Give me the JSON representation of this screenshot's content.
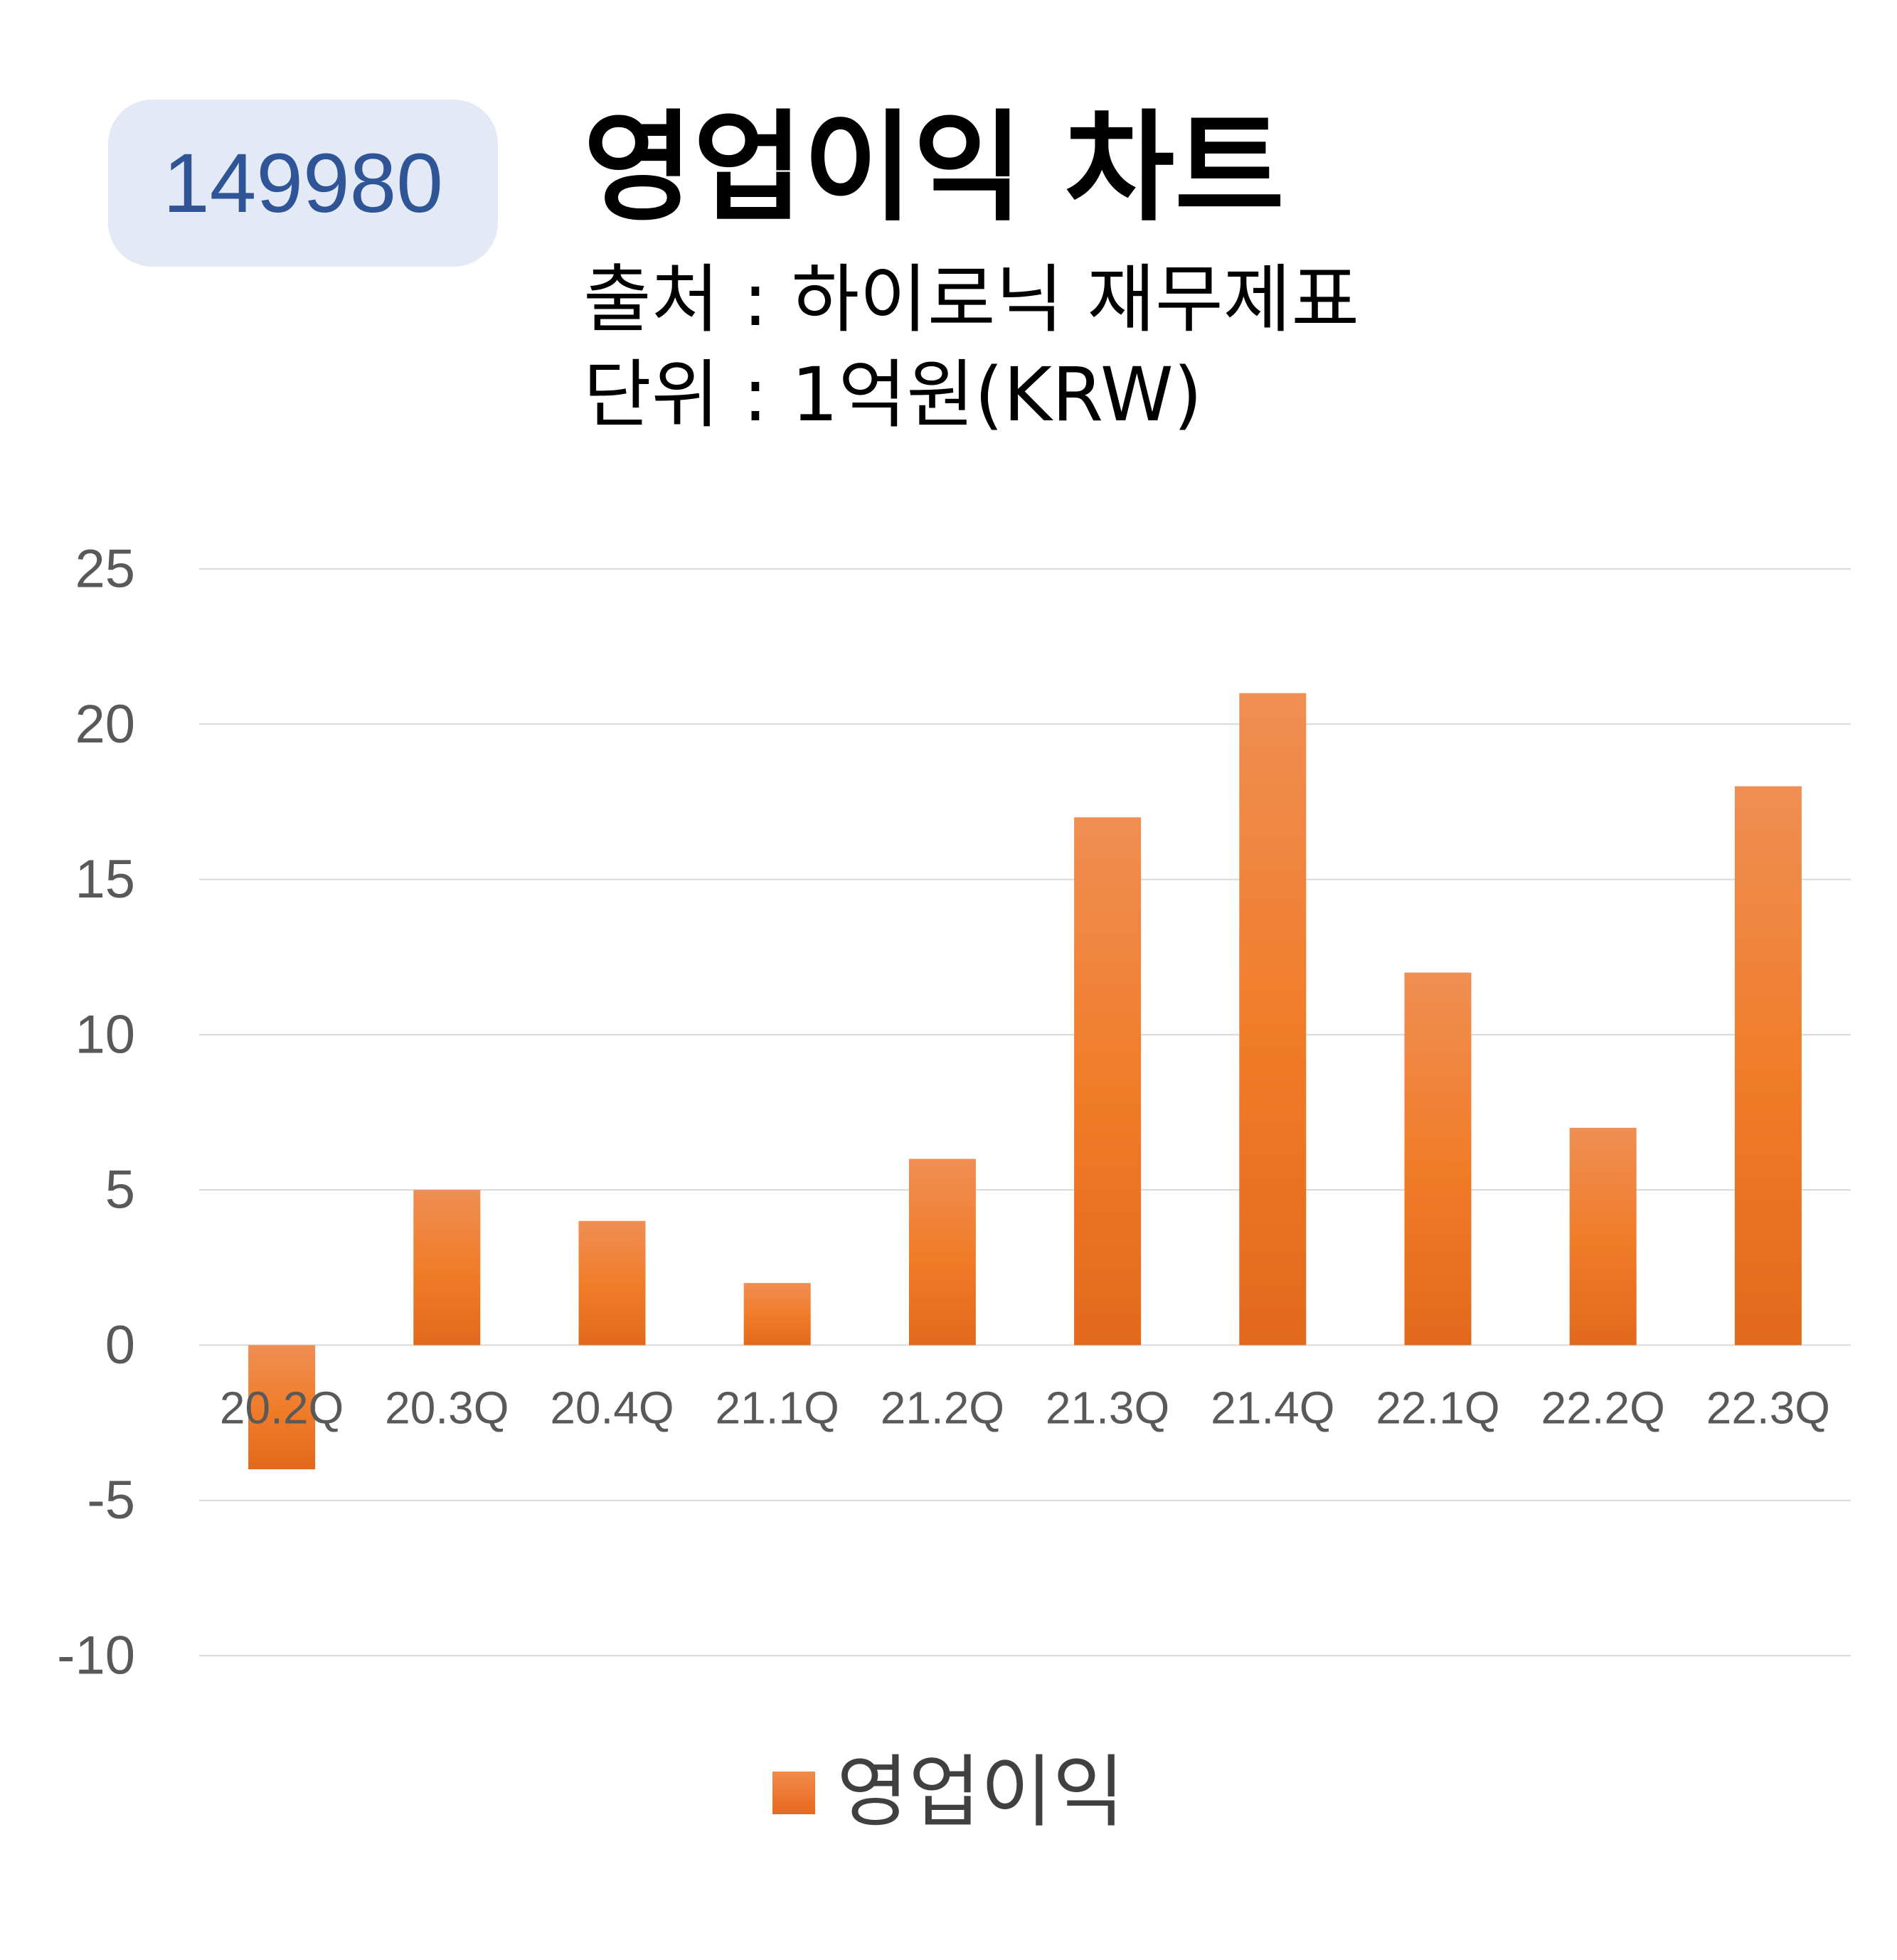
{
  "badge": {
    "code": "149980"
  },
  "header": {
    "title": "영업이익 차트",
    "source": "출처 : 하이로닉 재무제표",
    "unit": "단위 : 1억원(KRW)"
  },
  "colors": {
    "bar_top": "#f08e54",
    "bar_mid": "#f07d2a",
    "bar_bottom": "#e2691c",
    "grid": "#d9d9d9",
    "axis_text": "#595959",
    "badge_bg": "#e3e9f5",
    "badge_text": "#2f5597"
  },
  "chart_data": {
    "type": "bar",
    "categories": [
      "20.2Q",
      "20.3Q",
      "20.4Q",
      "21.1Q",
      "21.2Q",
      "21.3Q",
      "21.4Q",
      "22.1Q",
      "22.2Q",
      "22.3Q"
    ],
    "series": [
      {
        "name": "영업이익",
        "values": [
          -4,
          5,
          4,
          2,
          6,
          17,
          21,
          12,
          7,
          18
        ]
      }
    ],
    "ylim": [
      -10,
      25
    ],
    "yticks": [
      25,
      20,
      15,
      10,
      5,
      0,
      -5,
      -10
    ],
    "grid": true,
    "legend_position": "bottom",
    "title": "",
    "xlabel": "",
    "ylabel": ""
  }
}
